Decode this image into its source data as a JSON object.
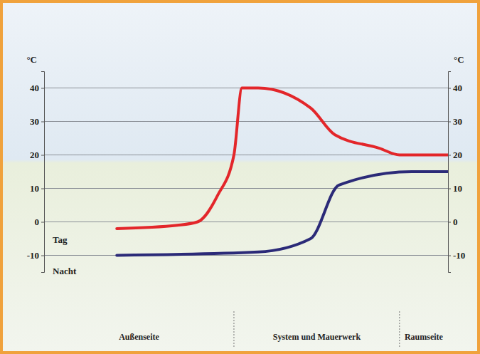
{
  "chart_data": {
    "type": "line",
    "y_label": "°C",
    "y2_label": "°C",
    "xlim": [
      0,
      100
    ],
    "ylim": [
      -15,
      45
    ],
    "yticks": [
      -10,
      0,
      10,
      20,
      30,
      40
    ],
    "y2lim": [
      -15,
      45
    ],
    "y2ticks": [
      -10,
      0,
      10,
      20,
      30,
      40
    ],
    "grid": true,
    "tick_labels": "y",
    "series": [
      {
        "name": "Tag",
        "color": "#e3262a",
        "x": [
          18,
          33,
          38,
          43,
          47,
          49,
          53,
          66,
          72,
          83,
          88,
          100
        ],
        "values": [
          -2,
          -1,
          0,
          8,
          20,
          40,
          40,
          34,
          26,
          22,
          20,
          20
        ]
      },
      {
        "name": "Nacht",
        "color": "#2b2a78",
        "x": [
          18,
          53,
          66,
          73,
          91,
          100
        ],
        "values": [
          -10,
          -9,
          -5,
          11,
          15,
          15
        ]
      }
    ],
    "regions": [
      {
        "label": "Außenseite",
        "from": 0,
        "to": 47
      },
      {
        "label": "System und Mauerwerk",
        "from": 47,
        "to": 88
      },
      {
        "label": "Raumseite",
        "from": 88,
        "to": 100
      }
    ]
  }
}
